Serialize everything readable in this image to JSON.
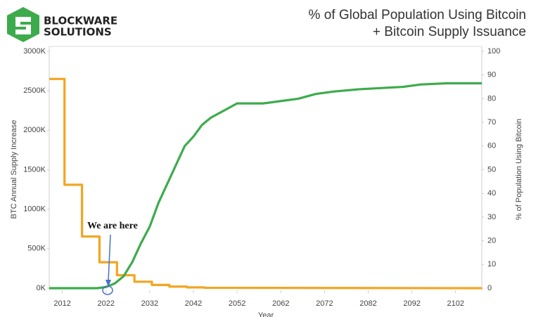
{
  "logo": [
    "BLOCKWARE",
    "SOLUTIONS"
  ],
  "chart_data": {
    "type": "line",
    "title": [
      "% of Global Population Using Bitcoin",
      "+ Bitcoin Supply Issuance"
    ],
    "xlabel": "Year",
    "ylabel": "BTC Annual Supply Increase",
    "y2label": "% of Population Using Bitcoin",
    "annotation": "We are here",
    "xlim": [
      2009,
      2108
    ],
    "xticks": [
      2012,
      2022,
      2032,
      2042,
      2052,
      2062,
      2072,
      2082,
      2092,
      2102
    ],
    "ylim": [
      0,
      3000
    ],
    "yticks": [
      {
        "value": 0,
        "label": "0K"
      },
      {
        "value": 500,
        "label": "500K"
      },
      {
        "value": 1000,
        "label": "1000K"
      },
      {
        "value": 1500,
        "label": "1500K"
      },
      {
        "value": 2000,
        "label": "2000K"
      },
      {
        "value": 2500,
        "label": "2500K"
      },
      {
        "value": 3000,
        "label": "3000K"
      }
    ],
    "y2lim": [
      0,
      100
    ],
    "y2ticks": [
      0,
      10,
      20,
      30,
      40,
      50,
      60,
      70,
      80,
      90,
      100
    ],
    "series": [
      {
        "color": "#f4a521",
        "x": [
          2009,
          2012.5,
          2012.5,
          2016.5,
          2016.5,
          2020.5,
          2020.5,
          2024.5,
          2024.5,
          2028.5,
          2028.5,
          2032.5,
          2032.5,
          2036.5,
          2036.5,
          2040.5,
          2040.5,
          2044.5,
          2044.5,
          2108
        ],
        "values": [
          2650,
          2650,
          1310,
          1310,
          655,
          655,
          328,
          328,
          164,
          164,
          82,
          82,
          41,
          41,
          20,
          20,
          10,
          10,
          5,
          0
        ]
      },
      {
        "color": "#3dab4c",
        "axis": "y2",
        "x": [
          2009,
          2020,
          2022,
          2024,
          2026,
          2028,
          2030,
          2032,
          2034,
          2036,
          2038,
          2040,
          2042,
          2044,
          2046,
          2048,
          2050,
          2052,
          2054,
          2058,
          2062,
          2066,
          2070,
          2074,
          2080,
          2090,
          2094,
          2100,
          2108
        ],
        "values": [
          0,
          0,
          0.5,
          2,
          5,
          11,
          19,
          26,
          36,
          44,
          52,
          60,
          64,
          69,
          72,
          74,
          76,
          78,
          78,
          78,
          79,
          80,
          82,
          83,
          84,
          85,
          86,
          86.5,
          86.5
        ]
      }
    ]
  }
}
